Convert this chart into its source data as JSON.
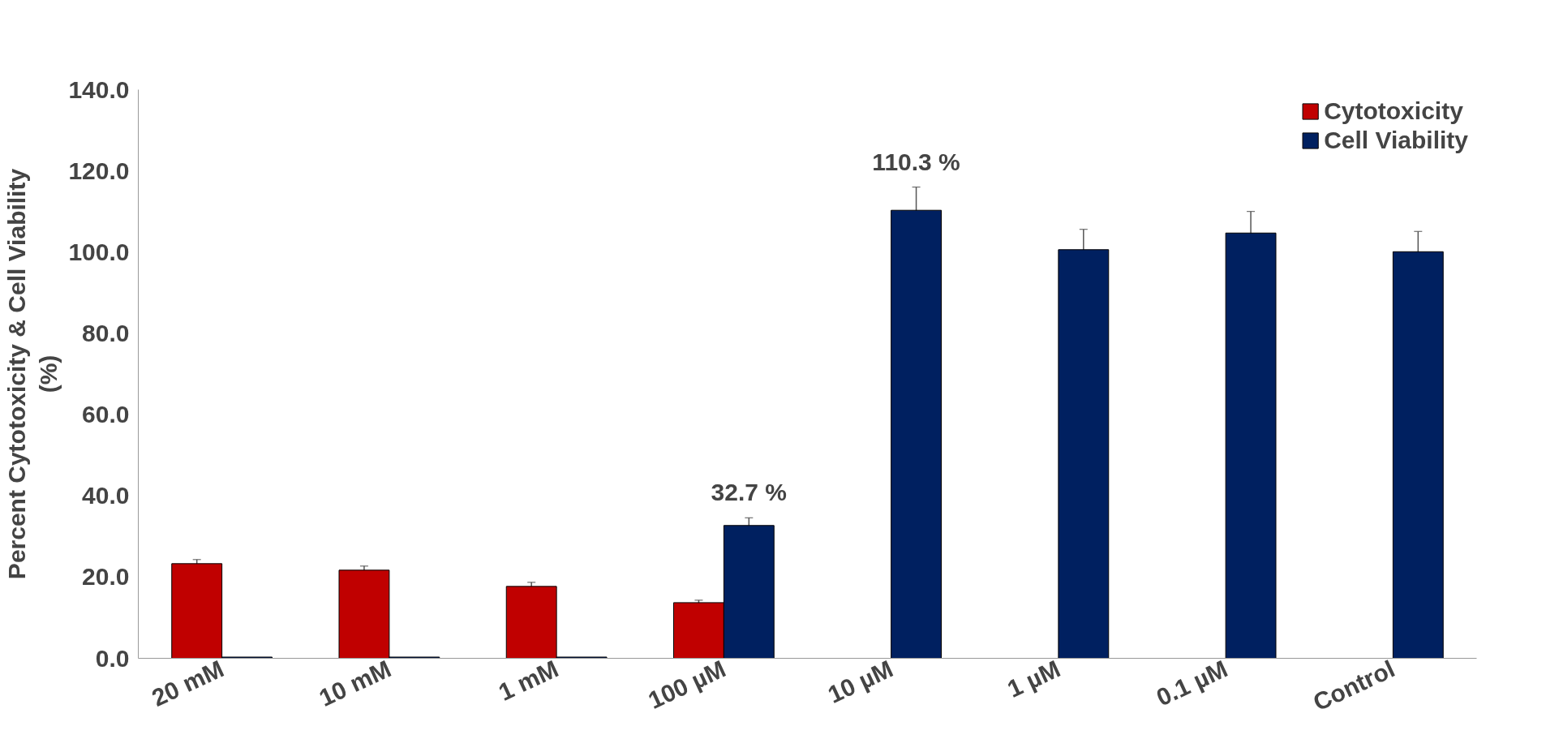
{
  "chart_data": {
    "type": "bar",
    "ylabel": "Percent Cytotoxicity & Cell Viability\n(%)",
    "categories": [
      "20 mM",
      "10 mM",
      "1 mM",
      "100 µM",
      "10 µM",
      "1 µM",
      "0.1 µM",
      "Control"
    ],
    "series": [
      {
        "name": "Cytotoxicity",
        "color": "#c00000",
        "values": [
          23.3,
          21.7,
          17.7,
          13.7,
          null,
          null,
          null,
          null
        ],
        "errors": [
          1.0,
          1.0,
          1.0,
          0.6,
          null,
          null,
          null,
          null
        ]
      },
      {
        "name": "Cell Viability",
        "color": "#002060",
        "values": [
          0.3,
          0.3,
          0.3,
          32.7,
          110.3,
          100.6,
          104.7,
          100.1
        ],
        "errors": [
          null,
          null,
          null,
          1.9,
          5.7,
          5.0,
          5.3,
          5.0
        ],
        "value_labels": [
          null,
          null,
          null,
          "32.7 %",
          "110.3 %",
          null,
          null,
          null
        ]
      }
    ],
    "ylim": [
      0,
      140
    ],
    "yticks": [
      {
        "value": 0,
        "label": "0.0"
      },
      {
        "value": 20,
        "label": "20.0"
      },
      {
        "value": 40,
        "label": "40.0"
      },
      {
        "value": 60,
        "label": "60.0"
      },
      {
        "value": 80,
        "label": "80.0"
      },
      {
        "value": 100,
        "label": "100.0"
      },
      {
        "value": 120,
        "label": "120.0"
      },
      {
        "value": 140,
        "label": "140.0"
      }
    ],
    "grid": false,
    "legend": "top right"
  }
}
